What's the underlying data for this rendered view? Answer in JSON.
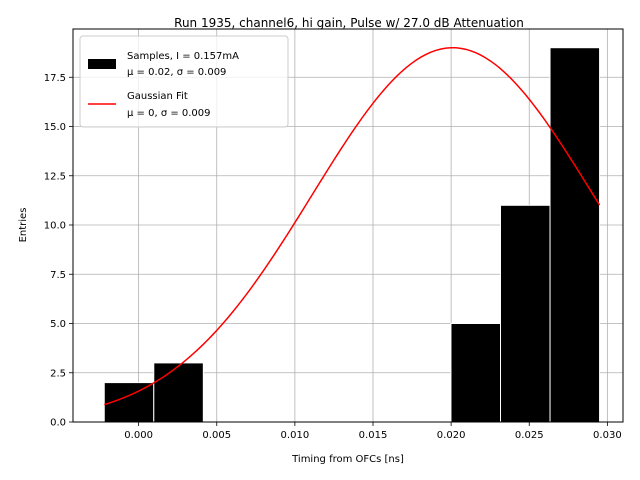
{
  "chart_data": {
    "type": "bar",
    "title": "Run 1935, channel6, hi gain, Pulse w/ 27.0 dB Attenuation",
    "xlabel": "Timing from OFCs [ns]",
    "ylabel": "Entries",
    "xlim": [
      -0.0042,
      0.031
    ],
    "ylim": [
      0,
      19.95
    ],
    "xticks": [
      0.0,
      0.005,
      0.01,
      0.015,
      0.02,
      0.025,
      0.03
    ],
    "xtick_labels": [
      "0.000",
      "0.005",
      "0.010",
      "0.015",
      "0.020",
      "0.025",
      "0.030"
    ],
    "yticks": [
      0.0,
      2.5,
      5.0,
      7.5,
      10.0,
      12.5,
      15.0,
      17.5
    ],
    "ytick_labels": [
      "0.0",
      "2.5",
      "5.0",
      "7.5",
      "10.0",
      "12.5",
      "15.0",
      "17.5"
    ],
    "grid": true,
    "legend_position": "top-left",
    "histogram": {
      "name": "Samples, I = 0.157mA",
      "sublabel": "μ = 0.02, σ = 0.009",
      "color": "#000000",
      "bins": [
        {
          "x0": -0.0022,
          "x1": 0.00097,
          "count": 2
        },
        {
          "x0": 0.00097,
          "x1": 0.00414,
          "count": 3
        },
        {
          "x0": 0.00414,
          "x1": 0.00731,
          "count": 0
        },
        {
          "x0": 0.00731,
          "x1": 0.01048,
          "count": 0
        },
        {
          "x0": 0.01048,
          "x1": 0.01365,
          "count": 0
        },
        {
          "x0": 0.01365,
          "x1": 0.01682,
          "count": 0
        },
        {
          "x0": 0.01682,
          "x1": 0.01999,
          "count": 0
        },
        {
          "x0": 0.01999,
          "x1": 0.02316,
          "count": 5
        },
        {
          "x0": 0.02316,
          "x1": 0.02633,
          "count": 11
        },
        {
          "x0": 0.02633,
          "x1": 0.0295,
          "count": 19
        }
      ]
    },
    "fit": {
      "name": "Gaussian Fit",
      "sublabel": "μ = 0, σ = 0.009",
      "color": "#ff0000",
      "mu": 0.0201,
      "sigma": 0.009,
      "amplitude": 19.0,
      "x_range": [
        -0.0022,
        0.0295
      ]
    }
  }
}
